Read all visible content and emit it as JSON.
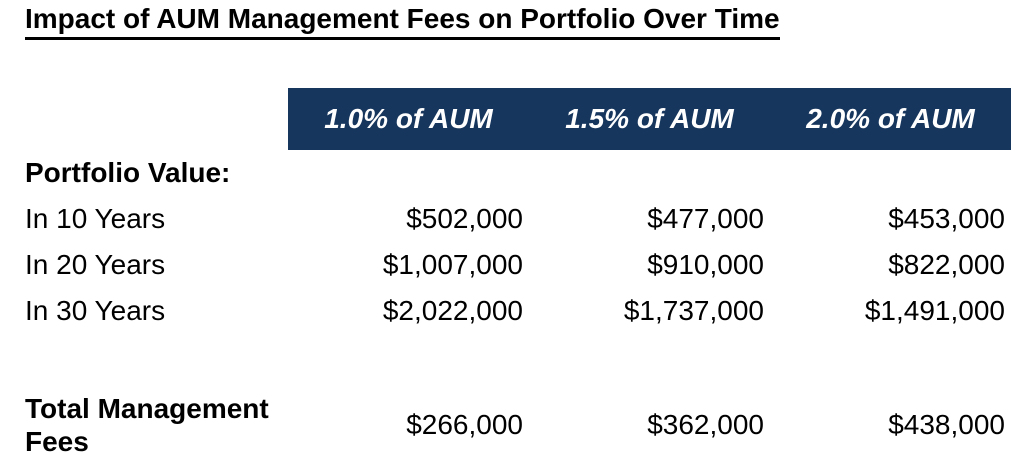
{
  "title": "Impact of AUM Management Fees on Portfolio Over Time",
  "colors": {
    "header_bg": "#17365D",
    "header_text": "#FFFFFF",
    "body_text": "#000000",
    "title_underline": "#000000"
  },
  "chart_data": {
    "type": "table",
    "title": "Impact of AUM Management Fees on Portfolio Over Time",
    "column_headers": [
      "1.0% of AUM",
      "1.5% of AUM",
      "2.0% of AUM"
    ],
    "section_label": "Portfolio Value:",
    "rows": [
      {
        "label": "In 10 Years",
        "values": [
          "$502,000",
          "$477,000",
          "$453,000"
        ],
        "values_numeric": [
          502000,
          477000,
          453000
        ]
      },
      {
        "label": "In 20 Years",
        "values": [
          "$1,007,000",
          "$910,000",
          "$822,000"
        ],
        "values_numeric": [
          1007000,
          910000,
          822000
        ]
      },
      {
        "label": "In 30 Years",
        "values": [
          "$2,022,000",
          "$1,737,000",
          "$1,491,000"
        ],
        "values_numeric": [
          2022000,
          1737000,
          1491000
        ]
      }
    ],
    "total_row": {
      "label": "Total Management Fees",
      "values": [
        "$266,000",
        "$362,000",
        "$438,000"
      ],
      "values_numeric": [
        266000,
        362000,
        438000
      ]
    },
    "layout": {
      "header_style": "bold italic white on dark navy, centered",
      "value_alignment": "right",
      "gridlines": "none",
      "blank_row_before_total": true
    }
  }
}
